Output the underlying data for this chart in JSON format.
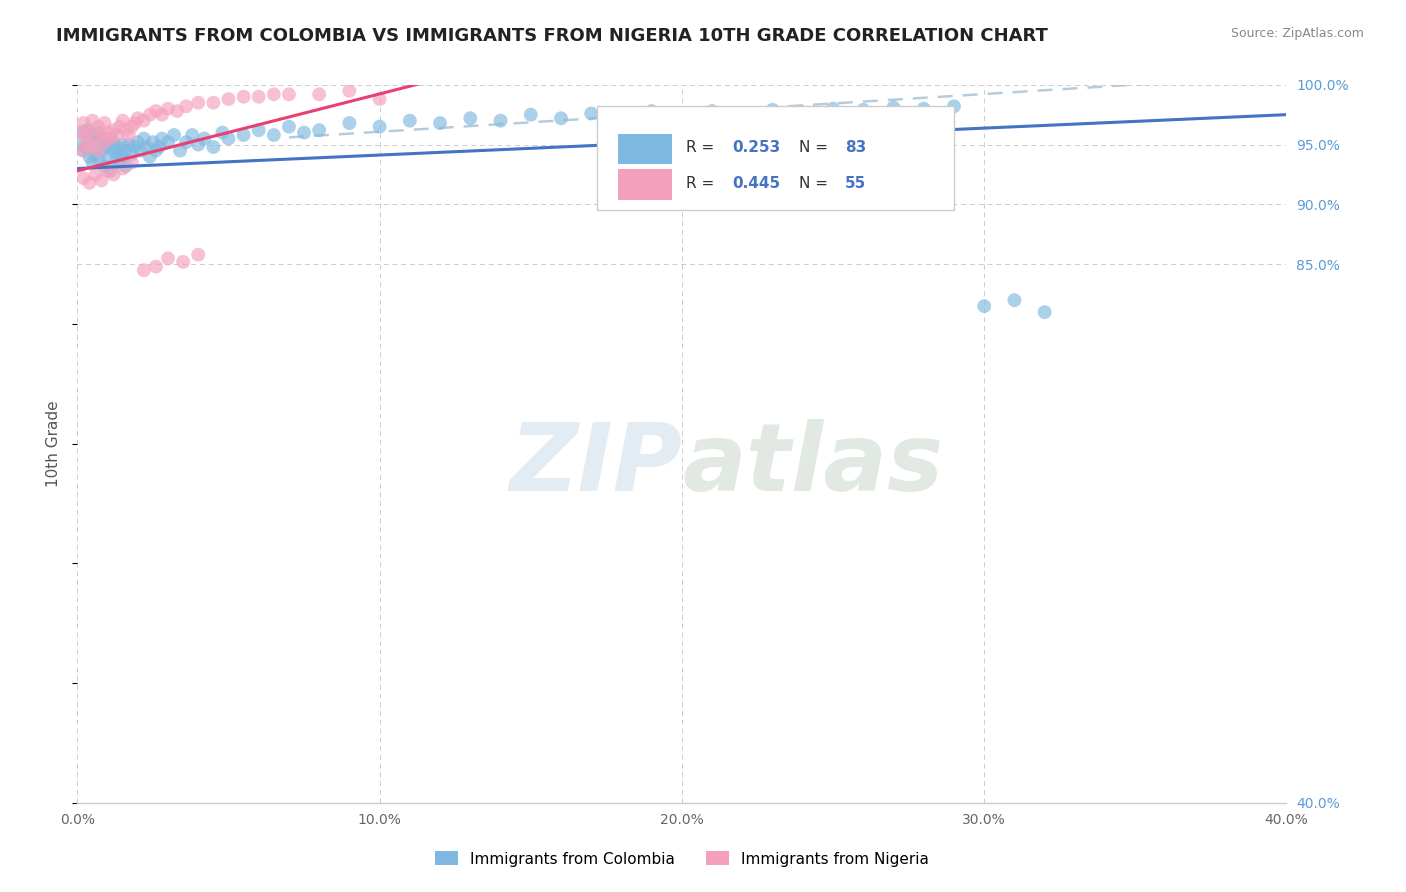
{
  "title": "IMMIGRANTS FROM COLOMBIA VS IMMIGRANTS FROM NIGERIA 10TH GRADE CORRELATION CHART",
  "source_text": "Source: ZipAtlas.com",
  "ylabel": "10th Grade",
  "legend_label1": "Immigrants from Colombia",
  "legend_label2": "Immigrants from Nigeria",
  "xlim": [
    0.0,
    0.4
  ],
  "ylim": [
    0.4,
    1.0
  ],
  "xticks": [
    0.0,
    0.1,
    0.2,
    0.3,
    0.4
  ],
  "xtick_labels": [
    "0.0%",
    "10.0%",
    "20.0%",
    "30.0%",
    "40.0%"
  ],
  "yticks_right": [
    1.0,
    0.95,
    0.9,
    0.85,
    0.4
  ],
  "ytick_labels_right": [
    "100.0%",
    "95.0%",
    "90.0%",
    "85.0%",
    "40.0%"
  ],
  "color_colombia": "#7EB8E0",
  "color_nigeria": "#F4A0BC",
  "trend_color_colombia": "#4472C4",
  "trend_color_nigeria": "#E84070",
  "ref_line_color": "#A8C4D8",
  "colombia_x": [
    0.001,
    0.002,
    0.002,
    0.003,
    0.003,
    0.004,
    0.004,
    0.005,
    0.005,
    0.006,
    0.006,
    0.007,
    0.007,
    0.008,
    0.008,
    0.009,
    0.009,
    0.01,
    0.01,
    0.011,
    0.011,
    0.012,
    0.012,
    0.013,
    0.013,
    0.014,
    0.014,
    0.015,
    0.015,
    0.016,
    0.016,
    0.017,
    0.018,
    0.019,
    0.02,
    0.021,
    0.022,
    0.023,
    0.024,
    0.025,
    0.026,
    0.027,
    0.028,
    0.03,
    0.032,
    0.034,
    0.036,
    0.038,
    0.04,
    0.042,
    0.045,
    0.048,
    0.05,
    0.055,
    0.06,
    0.065,
    0.07,
    0.075,
    0.08,
    0.09,
    0.1,
    0.11,
    0.12,
    0.13,
    0.14,
    0.15,
    0.16,
    0.17,
    0.18,
    0.19,
    0.2,
    0.21,
    0.22,
    0.23,
    0.24,
    0.25,
    0.26,
    0.27,
    0.28,
    0.29,
    0.3,
    0.31,
    0.32
  ],
  "colombia_y": [
    0.95,
    0.96,
    0.945,
    0.962,
    0.948,
    0.955,
    0.94,
    0.958,
    0.935,
    0.952,
    0.942,
    0.96,
    0.938,
    0.955,
    0.945,
    0.95,
    0.932,
    0.948,
    0.94,
    0.955,
    0.928,
    0.945,
    0.952,
    0.938,
    0.948,
    0.942,
    0.935,
    0.95,
    0.94,
    0.945,
    0.932,
    0.95,
    0.942,
    0.948,
    0.952,
    0.945,
    0.955,
    0.948,
    0.94,
    0.952,
    0.945,
    0.948,
    0.955,
    0.952,
    0.958,
    0.945,
    0.952,
    0.958,
    0.95,
    0.955,
    0.948,
    0.96,
    0.955,
    0.958,
    0.962,
    0.958,
    0.965,
    0.96,
    0.962,
    0.968,
    0.965,
    0.97,
    0.968,
    0.972,
    0.97,
    0.975,
    0.972,
    0.976,
    0.974,
    0.978,
    0.975,
    0.978,
    0.976,
    0.979,
    0.977,
    0.98,
    0.979,
    0.981,
    0.98,
    0.982,
    0.815,
    0.82,
    0.81
  ],
  "nigeria_x": [
    0.001,
    0.002,
    0.002,
    0.003,
    0.003,
    0.004,
    0.005,
    0.005,
    0.006,
    0.007,
    0.007,
    0.008,
    0.009,
    0.009,
    0.01,
    0.011,
    0.012,
    0.013,
    0.014,
    0.015,
    0.016,
    0.017,
    0.018,
    0.019,
    0.02,
    0.022,
    0.024,
    0.026,
    0.028,
    0.03,
    0.033,
    0.036,
    0.04,
    0.045,
    0.05,
    0.055,
    0.06,
    0.065,
    0.07,
    0.08,
    0.09,
    0.1,
    0.002,
    0.004,
    0.006,
    0.008,
    0.01,
    0.012,
    0.015,
    0.018,
    0.022,
    0.026,
    0.03,
    0.035,
    0.04
  ],
  "nigeria_y": [
    0.96,
    0.945,
    0.968,
    0.958,
    0.95,
    0.962,
    0.948,
    0.97,
    0.955,
    0.965,
    0.945,
    0.958,
    0.952,
    0.968,
    0.96,
    0.955,
    0.962,
    0.958,
    0.965,
    0.97,
    0.962,
    0.958,
    0.965,
    0.968,
    0.972,
    0.97,
    0.975,
    0.978,
    0.975,
    0.98,
    0.978,
    0.982,
    0.985,
    0.985,
    0.988,
    0.99,
    0.99,
    0.992,
    0.992,
    0.992,
    0.995,
    0.988,
    0.922,
    0.918,
    0.925,
    0.92,
    0.928,
    0.925,
    0.93,
    0.935,
    0.845,
    0.848,
    0.855,
    0.852,
    0.858
  ],
  "colombia_trend": [
    0.0,
    0.4,
    0.93,
    0.975
  ],
  "nigeria_trend": [
    0.0,
    0.115,
    0.928,
    1.002
  ],
  "ref_line": [
    0.07,
    0.4,
    0.956,
    1.008
  ]
}
